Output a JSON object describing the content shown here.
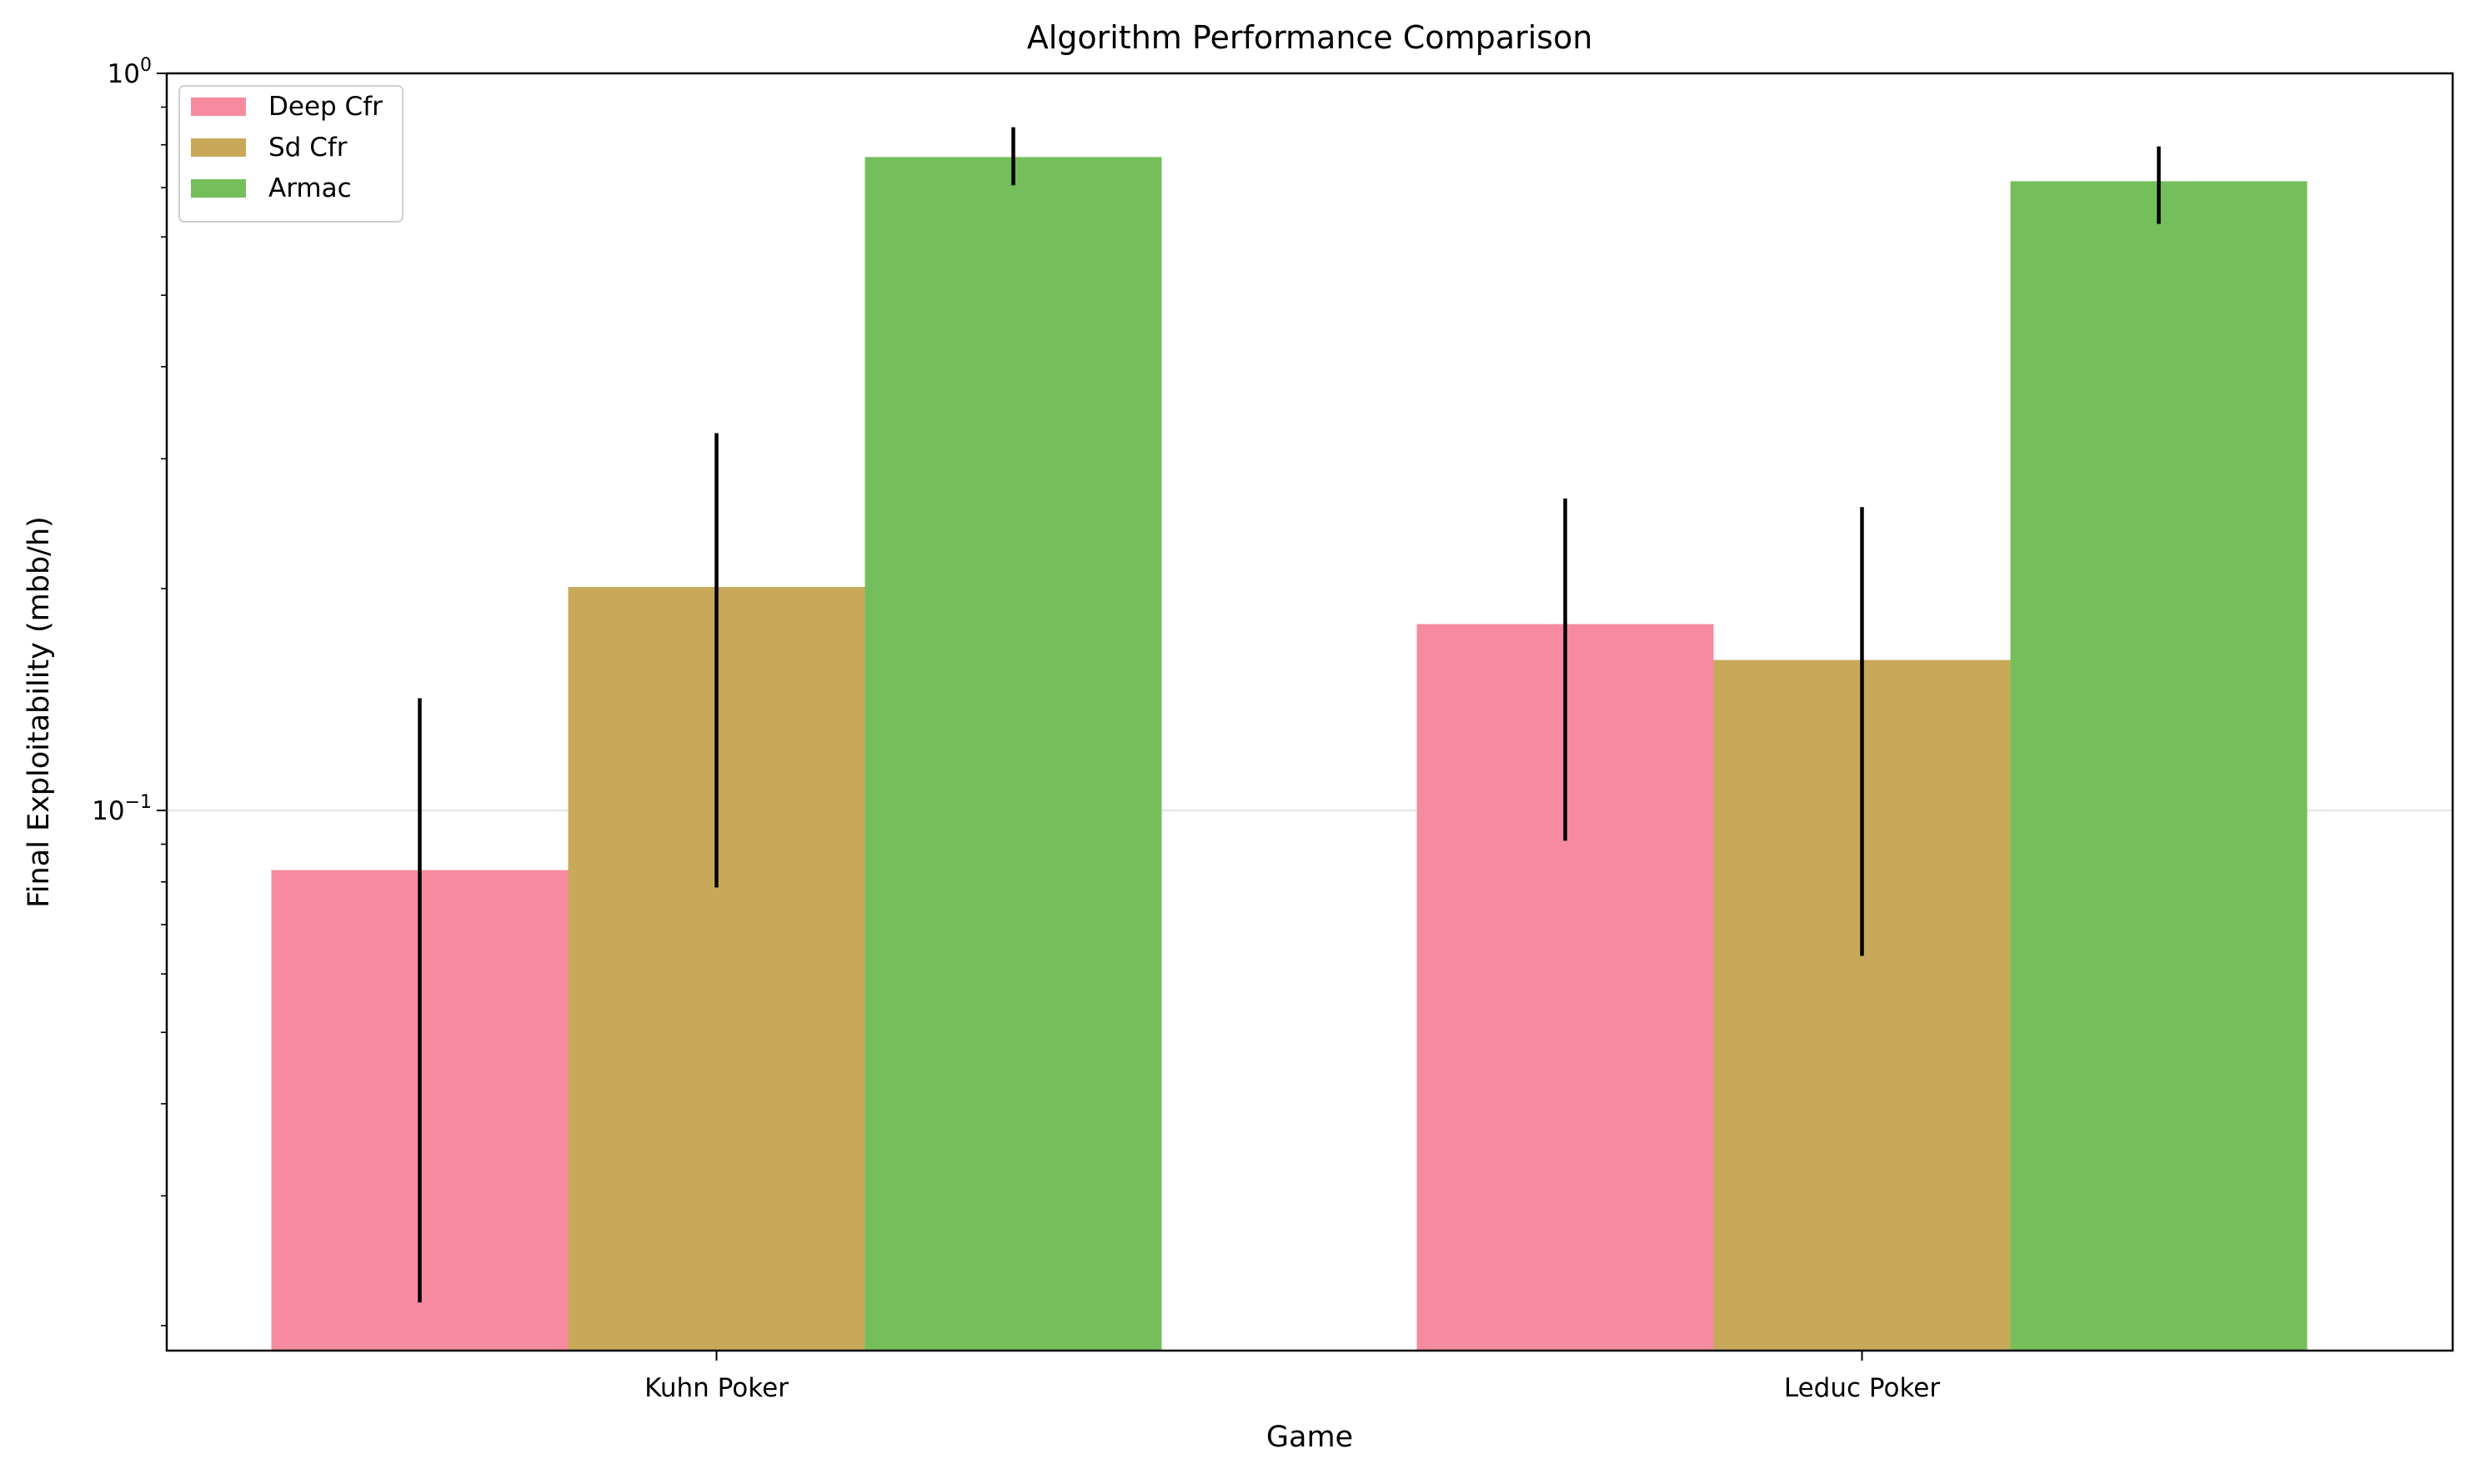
{
  "chart_data": {
    "type": "bar",
    "title": "Algorithm Performance Comparison",
    "xlabel": "Game",
    "ylabel": "Final Exploitability (mbb/h)",
    "yscale": "log",
    "ylim": [
      0.0185,
      1.0
    ],
    "y_major_ticks": [
      {
        "value": 0.1,
        "base": "10",
        "exp": "−1"
      },
      {
        "value": 1.0,
        "base": "10",
        "exp": "0"
      }
    ],
    "y_minor_ticks": [
      0.02,
      0.03,
      0.04,
      0.05,
      0.06,
      0.07,
      0.08,
      0.09,
      0.2,
      0.3,
      0.4,
      0.5,
      0.6,
      0.7,
      0.8,
      0.9
    ],
    "grid": "horizontal major lines",
    "legend_position": "top-left",
    "categories": [
      "Kuhn Poker",
      "Leduc Poker"
    ],
    "series": [
      {
        "name": "Deep Cfr",
        "color": "#f68b9f",
        "values": [
          0.083,
          0.179
        ],
        "err_low": [
          0.0215,
          0.091
        ],
        "err_high": [
          0.142,
          0.265
        ]
      },
      {
        "name": "Sd Cfr",
        "color": "#c7a959",
        "values": [
          0.201,
          0.16
        ],
        "err_low": [
          0.0786,
          0.0635
        ],
        "err_high": [
          0.325,
          0.258
        ]
      },
      {
        "name": "Armac",
        "color": "#74bf5c",
        "values": [
          0.77,
          0.714
        ],
        "err_low": [
          0.705,
          0.625
        ],
        "err_high": [
          0.845,
          0.796
        ]
      }
    ]
  }
}
